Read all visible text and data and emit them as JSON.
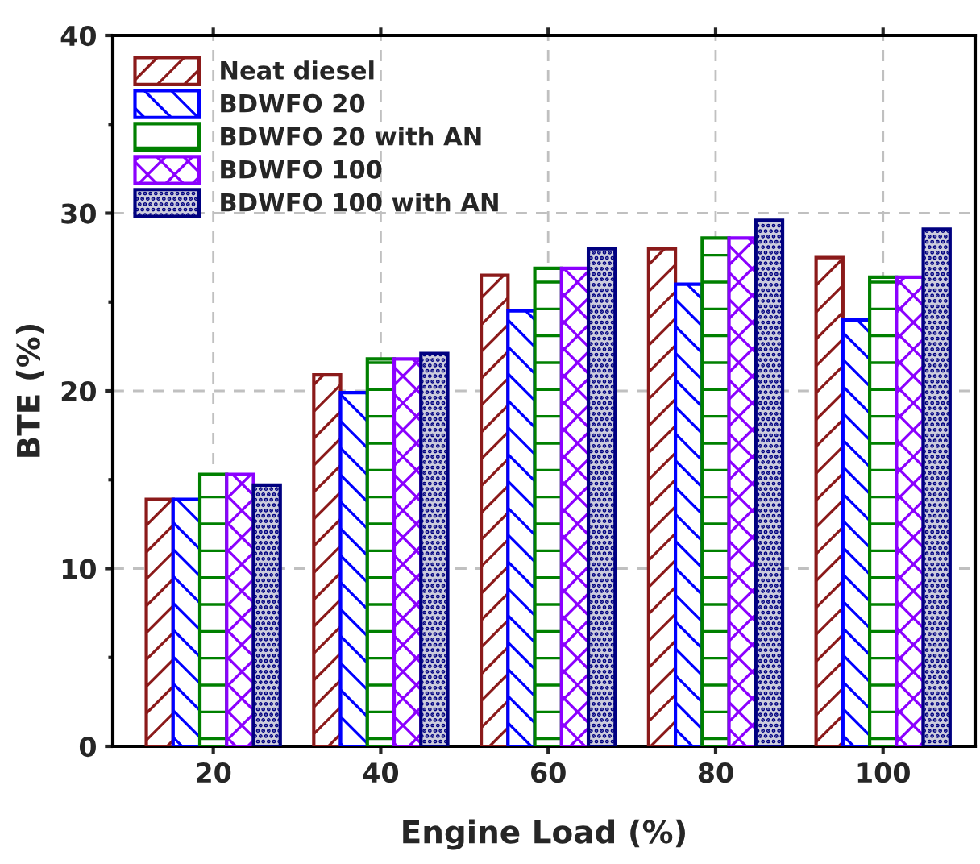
{
  "chart_data": {
    "type": "bar",
    "xlabel": "Engine Load (%)",
    "ylabel": "BTE (%)",
    "categories": [
      "20",
      "40",
      "60",
      "80",
      "100"
    ],
    "series": [
      {
        "name": "Neat diesel",
        "color": "#8b1a1a",
        "values": [
          13.9,
          20.9,
          26.5,
          28.0,
          27.5
        ]
      },
      {
        "name": "BDWFO 20",
        "color": "#0000ff",
        "values": [
          13.9,
          19.9,
          24.5,
          26.0,
          24.0
        ]
      },
      {
        "name": "BDWFO 20 with AN",
        "color": "#008000",
        "values": [
          15.3,
          21.8,
          26.9,
          28.6,
          26.4
        ]
      },
      {
        "name": "BDWFO 100",
        "color": "#8b00ff",
        "values": [
          15.3,
          21.8,
          26.9,
          28.6,
          26.4
        ]
      },
      {
        "name": "BDWFO 100 with AN",
        "color": "#000080",
        "values": [
          14.7,
          22.1,
          28.0,
          29.6,
          29.1
        ]
      }
    ],
    "ylim": [
      0,
      40
    ],
    "yticks": [
      0,
      10,
      20,
      30,
      40
    ],
    "grid": true,
    "legend": "top left"
  }
}
